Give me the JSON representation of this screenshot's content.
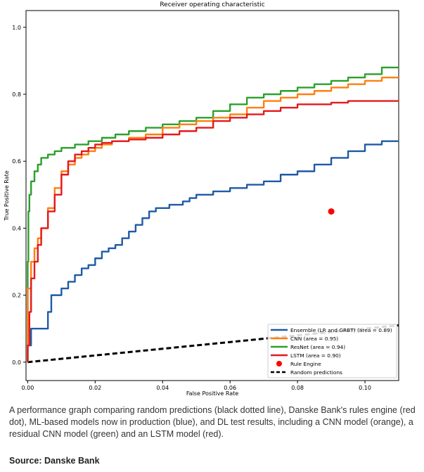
{
  "chart_data": {
    "type": "line",
    "title": "Receiver operating characteristic",
    "xlabel": "False Positive Rate",
    "ylabel": "True Positive Rate",
    "xlim": [
      -0.0005,
      0.11
    ],
    "ylim": [
      -0.055,
      1.05
    ],
    "xticks": [
      0.0,
      0.02,
      0.04,
      0.06,
      0.08,
      0.1
    ],
    "xtick_labels": [
      "0.00",
      "0.02",
      "0.04",
      "0.06",
      "0.08",
      "0.10"
    ],
    "yticks": [
      0.0,
      0.2,
      0.4,
      0.6,
      0.8,
      1.0
    ],
    "ytick_labels": [
      "0.0",
      "0.2",
      "0.4",
      "0.6",
      "0.8",
      "1.0"
    ],
    "grid": false,
    "legend_position": "lower-right",
    "series": [
      {
        "name": "Ensemble (LR and GRBT) (area = 0.89)",
        "color": "#1f5aa6",
        "x": [
          0.0,
          0.001,
          0.001,
          0.006,
          0.007,
          0.01,
          0.012,
          0.014,
          0.016,
          0.018,
          0.02,
          0.022,
          0.024,
          0.026,
          0.028,
          0.03,
          0.032,
          0.034,
          0.036,
          0.038,
          0.04,
          0.042,
          0.044,
          0.046,
          0.048,
          0.05,
          0.055,
          0.06,
          0.065,
          0.07,
          0.075,
          0.08,
          0.085,
          0.09,
          0.095,
          0.1,
          0.105,
          0.11
        ],
        "y": [
          0.0,
          0.05,
          0.1,
          0.1,
          0.15,
          0.2,
          0.22,
          0.24,
          0.26,
          0.28,
          0.29,
          0.31,
          0.33,
          0.34,
          0.35,
          0.37,
          0.39,
          0.41,
          0.43,
          0.45,
          0.46,
          0.46,
          0.47,
          0.47,
          0.48,
          0.49,
          0.5,
          0.51,
          0.52,
          0.53,
          0.54,
          0.56,
          0.57,
          0.59,
          0.61,
          0.63,
          0.65,
          0.66
        ]
      },
      {
        "name": "CNN (area = 0.95)",
        "color": "#ff7f0e",
        "x": [
          0.0,
          0.001,
          0.002,
          0.003,
          0.004,
          0.006,
          0.008,
          0.01,
          0.012,
          0.014,
          0.016,
          0.018,
          0.02,
          0.022,
          0.025,
          0.03,
          0.035,
          0.04,
          0.045,
          0.05,
          0.055,
          0.06,
          0.065,
          0.07,
          0.075,
          0.08,
          0.085,
          0.09,
          0.095,
          0.1,
          0.105,
          0.11
        ],
        "y": [
          0.0,
          0.22,
          0.3,
          0.34,
          0.37,
          0.4,
          0.46,
          0.52,
          0.57,
          0.59,
          0.61,
          0.62,
          0.63,
          0.64,
          0.65,
          0.66,
          0.67,
          0.68,
          0.7,
          0.71,
          0.72,
          0.73,
          0.74,
          0.76,
          0.78,
          0.79,
          0.8,
          0.81,
          0.82,
          0.83,
          0.84,
          0.85
        ]
      },
      {
        "name": "ResNet (area = 0.94)",
        "color": "#2ca02c",
        "x": [
          0.0,
          0.0002,
          0.0005,
          0.001,
          0.002,
          0.003,
          0.004,
          0.006,
          0.008,
          0.01,
          0.014,
          0.018,
          0.022,
          0.026,
          0.03,
          0.035,
          0.04,
          0.045,
          0.05,
          0.055,
          0.06,
          0.065,
          0.07,
          0.075,
          0.08,
          0.085,
          0.09,
          0.095,
          0.1,
          0.105,
          0.11
        ],
        "y": [
          0.0,
          0.3,
          0.45,
          0.5,
          0.54,
          0.57,
          0.59,
          0.61,
          0.62,
          0.63,
          0.64,
          0.65,
          0.66,
          0.67,
          0.68,
          0.69,
          0.7,
          0.71,
          0.72,
          0.73,
          0.75,
          0.77,
          0.79,
          0.8,
          0.81,
          0.82,
          0.83,
          0.84,
          0.85,
          0.86,
          0.88
        ]
      },
      {
        "name": "LSTM (area = 0.90)",
        "color": "#e31a1c",
        "x": [
          0.0,
          0.0005,
          0.001,
          0.002,
          0.003,
          0.004,
          0.006,
          0.008,
          0.01,
          0.012,
          0.014,
          0.016,
          0.018,
          0.02,
          0.022,
          0.025,
          0.03,
          0.035,
          0.04,
          0.045,
          0.05,
          0.055,
          0.06,
          0.065,
          0.07,
          0.075,
          0.08,
          0.085,
          0.09,
          0.095,
          0.1,
          0.105,
          0.11
        ],
        "y": [
          0.0,
          0.05,
          0.15,
          0.25,
          0.3,
          0.35,
          0.4,
          0.45,
          0.5,
          0.56,
          0.6,
          0.62,
          0.63,
          0.64,
          0.65,
          0.655,
          0.66,
          0.665,
          0.67,
          0.68,
          0.69,
          0.7,
          0.72,
          0.73,
          0.74,
          0.75,
          0.76,
          0.77,
          0.77,
          0.775,
          0.78,
          0.78,
          0.78
        ]
      },
      {
        "name": "Random predictions",
        "color": "#000000",
        "style": "dashed",
        "x": [
          0.0,
          0.11
        ],
        "y": [
          0.0,
          0.11
        ]
      }
    ],
    "points": [
      {
        "name": "Rule Engine",
        "color": "#ff0000",
        "x": 0.09,
        "y": 0.45
      }
    ]
  },
  "caption": "A performance graph comparing random predictions (black dotted line), Danske Bank's rules engine (red dot), ML-based models now in production (blue), and DL test results, including a CNN model (orange), a residual CNN model (green) and an LSTM model (red).",
  "source": "Source: Danske Bank"
}
